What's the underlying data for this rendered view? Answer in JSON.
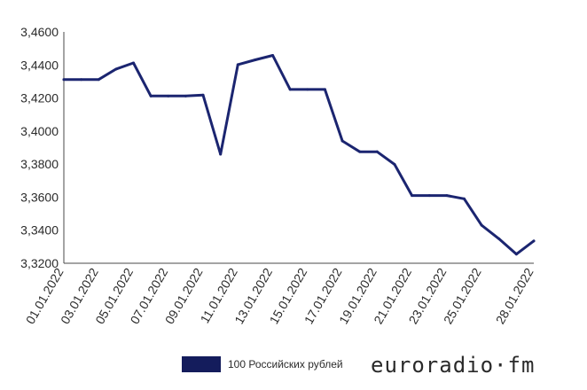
{
  "chart_data": {
    "type": "line",
    "title": "",
    "xlabel": "",
    "ylabel": "",
    "ylim": [
      3.32,
      3.46
    ],
    "y_ticks": [
      "3,3200",
      "3,3400",
      "3,3600",
      "3,3800",
      "3,4000",
      "3,4200",
      "3,4400",
      "3,4600"
    ],
    "x_tick_labels": [
      "01.01.2022",
      "03.01.2022",
      "05.01.2022",
      "07.01.2022",
      "09.01.2022",
      "11.01.2022",
      "13.01.2022",
      "15.01.2022",
      "17.01.2022",
      "19.01.2022",
      "21.01.2022",
      "23.01.2022",
      "25.01.2022",
      "28.01.2022"
    ],
    "x": [
      "01.01.2022",
      "02.01.2022",
      "03.01.2022",
      "04.01.2022",
      "05.01.2022",
      "06.01.2022",
      "07.01.2022",
      "08.01.2022",
      "09.01.2022",
      "10.01.2022",
      "11.01.2022",
      "12.01.2022",
      "13.01.2022",
      "14.01.2022",
      "15.01.2022",
      "16.01.2022",
      "17.01.2022",
      "18.01.2022",
      "19.01.2022",
      "20.01.2022",
      "21.01.2022",
      "22.01.2022",
      "23.01.2022",
      "24.01.2022",
      "25.01.2022",
      "26.01.2022",
      "27.01.2022",
      "28.01.2022"
    ],
    "series": [
      {
        "name": "100 Российских рублей",
        "color": "#1b2570",
        "values": [
          3.4312,
          3.4312,
          3.4312,
          3.4375,
          3.4412,
          3.4212,
          3.4212,
          3.4212,
          3.4218,
          3.386,
          3.4402,
          3.4431,
          3.4458,
          3.4252,
          3.4252,
          3.4252,
          3.394,
          3.3875,
          3.3875,
          3.3798,
          3.361,
          3.361,
          3.361,
          3.359,
          3.343,
          3.3348,
          3.3255,
          3.3335
        ]
      }
    ],
    "grid": false,
    "legend_position": "bottom"
  },
  "legend": {
    "label": "100 Российских рублей",
    "swatch_color": "#141c5c"
  },
  "brand": {
    "text": "euroradio·fm"
  }
}
